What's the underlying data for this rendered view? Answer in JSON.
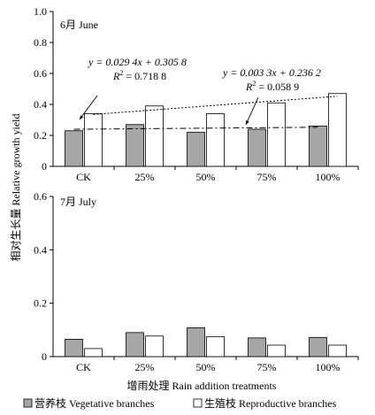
{
  "chart_data": [
    {
      "type": "bar",
      "panel_label": "6月 June",
      "categories": [
        "CK",
        "25%",
        "50%",
        "75%",
        "100%"
      ],
      "series": [
        {
          "name": "营养枝 Vegetative branches",
          "values": [
            0.23,
            0.27,
            0.22,
            0.24,
            0.26
          ],
          "color": "#a6a6a6"
        },
        {
          "name": "生殖枝 Reproductive branches",
          "values": [
            0.34,
            0.39,
            0.34,
            0.41,
            0.47
          ],
          "color": "#ffffff"
        }
      ],
      "ylim": [
        0,
        1.0
      ],
      "yticks": [
        "0",
        "0.2",
        "0.4",
        "0.6",
        "0.8",
        "1.0"
      ],
      "trendlines": [
        {
          "series": "生殖枝 Reproductive branches",
          "style": "dotted",
          "slope": 0.0294,
          "intercept": 0.3058,
          "equation": "y = 0.029 4x + 0.305 8",
          "r2_label": "R",
          "r2_value": " = 0.718 8"
        },
        {
          "series": "营养枝 Vegetative branches",
          "style": "dash-dot",
          "slope": 0.0033,
          "intercept": 0.2362,
          "equation": "y = 0.003 3x + 0.236 2",
          "r2_label": "R",
          "r2_value": " = 0.058 9"
        }
      ]
    },
    {
      "type": "bar",
      "panel_label": "7月 July",
      "categories": [
        "CK",
        "25%",
        "50%",
        "75%",
        "100%"
      ],
      "series": [
        {
          "name": "营养枝 Vegetative branches",
          "values": [
            0.065,
            0.09,
            0.108,
            0.07,
            0.072
          ],
          "color": "#a6a6a6"
        },
        {
          "name": "生殖枝 Reproductive branches",
          "values": [
            0.03,
            0.077,
            0.075,
            0.043,
            0.043
          ],
          "color": "#ffffff"
        }
      ],
      "ylim": [
        0,
        0.6
      ],
      "yticks": [
        "0",
        "0.2",
        "0.4",
        "0.6"
      ]
    }
  ],
  "ylabel": "相对生长量 Relative growth yield",
  "xlabel": "增雨处理 Rain addition treatments",
  "legend": [
    {
      "label": "营养枝 Vegetative branches",
      "color": "#a6a6a6"
    },
    {
      "label": "生殖枝 Reproductive branches",
      "color": "#ffffff"
    }
  ]
}
